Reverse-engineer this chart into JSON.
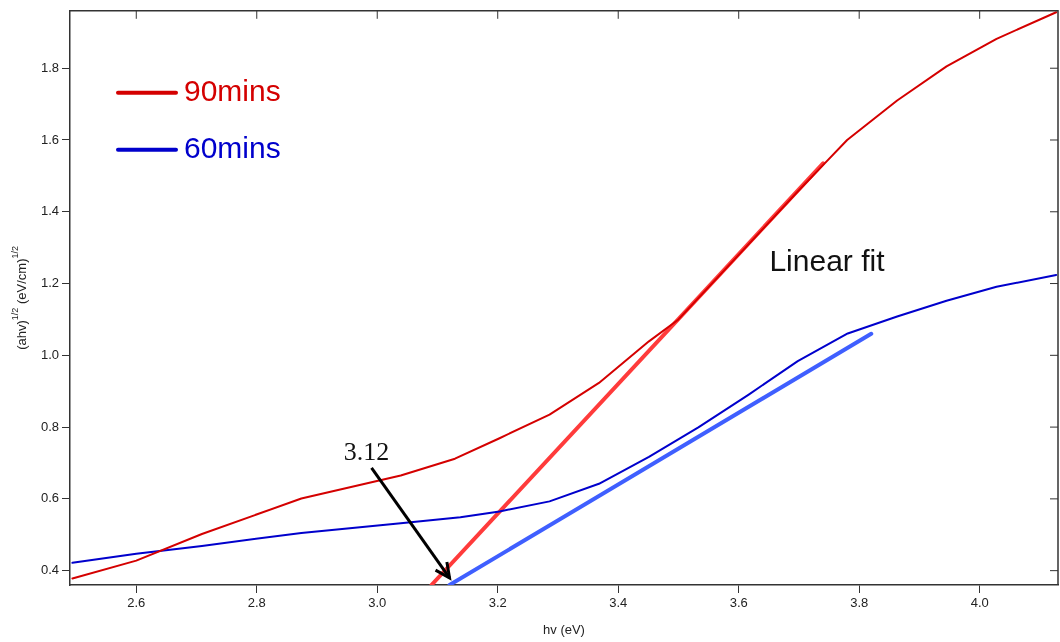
{
  "chart_data": {
    "type": "line",
    "xlabel": "hv (eV)",
    "ylabel": "(ahv)$^{1/2}$ (eV/cm)$^{1/2}$",
    "xlim": [
      2.49,
      4.13
    ],
    "ylim": [
      0.36,
      1.96
    ],
    "xticks": [
      2.6,
      2.8,
      {
        "value": 3.0,
        "label": "3.0"
      },
      3.2,
      3.4,
      3.6,
      3.8,
      {
        "value": 4.0,
        "label": "4.0"
      }
    ],
    "yticks": [
      0.4,
      0.6,
      0.8,
      {
        "value": 1.0,
        "label": "1.0"
      },
      1.2,
      1.4,
      1.6,
      1.8
    ],
    "grid": false,
    "legend": "top left",
    "marker": "none",
    "line_style": "solid",
    "annotations": [
      "Linear fit",
      {
        "text": "3.12",
        "x": 3.12,
        "y": 0.38
      }
    ],
    "series": [
      {
        "name": "90mins",
        "color": "#d40000",
        "x": [
          2.494,
          2.6,
          2.709,
          2.874,
          3.039,
          3.129,
          3.203,
          3.286,
          3.368,
          3.451,
          3.5,
          3.55,
          3.6,
          3.7,
          3.74,
          3.78,
          3.863,
          3.945,
          4.028,
          4.127
        ],
        "values": [
          0.378,
          0.428,
          0.502,
          0.601,
          0.665,
          0.712,
          0.769,
          0.835,
          0.923,
          1.039,
          1.1,
          1.19,
          1.28,
          1.46,
          1.53,
          1.6,
          1.71,
          1.805,
          1.882,
          1.956
        ]
      },
      {
        "name": "60mins",
        "color": "#0000cc",
        "x": [
          2.494,
          2.6,
          2.709,
          2.874,
          3.039,
          3.138,
          3.203,
          3.286,
          3.368,
          3.451,
          3.533,
          3.616,
          3.698,
          3.781,
          3.863,
          3.945,
          4.028,
          4.127
        ],
        "values": [
          0.422,
          0.447,
          0.469,
          0.505,
          0.532,
          0.549,
          0.565,
          0.593,
          0.642,
          0.717,
          0.799,
          0.89,
          0.984,
          1.061,
          1.108,
          1.152,
          1.191,
          1.224
        ]
      },
      {
        "type": "line",
        "color": "#ff3b3b",
        "x": [
          3.09,
          3.74
        ],
        "values": [
          0.36,
          1.535
        ]
      },
      {
        "type": "line",
        "color": "#3f5fff",
        "x": [
          3.12,
          3.82
        ],
        "values": [
          0.36,
          1.06
        ]
      }
    ]
  }
}
